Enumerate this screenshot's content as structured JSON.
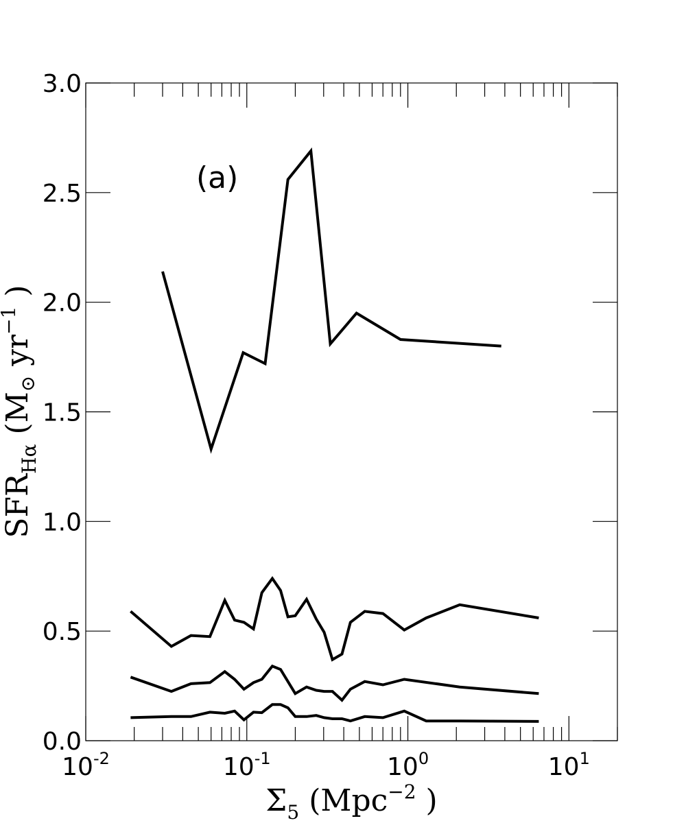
{
  "chart_data": {
    "type": "line",
    "title": "",
    "xlabel": "Σ5 (Mpc⁻² )",
    "ylabel": "SFR_Hα (M⊙ yr⁻¹ )",
    "xscale": "log",
    "xlim": [
      0.01,
      20
    ],
    "ylim": [
      0,
      3.0
    ],
    "grid": false,
    "legend": "none",
    "annotation": "(a)",
    "x_tick_labels": [
      {
        "value": 0.01,
        "base": "10",
        "exp": "-2"
      },
      {
        "value": 0.1,
        "base": "10",
        "exp": "-1"
      },
      {
        "value": 1,
        "base": "10",
        "exp": "0"
      },
      {
        "value": 10,
        "base": "10",
        "exp": "1"
      }
    ],
    "y_tick_labels": [
      "0.0",
      "0.5",
      "1.0",
      "1.5",
      "2.0",
      "2.5",
      "3.0"
    ],
    "y_ticks": [
      0,
      0.5,
      1.0,
      1.5,
      2.0,
      2.5,
      3.0
    ],
    "series": [
      {
        "x": [
          0.03,
          0.06,
          0.095,
          0.13,
          0.18,
          0.25,
          0.33,
          0.48,
          0.9,
          3.8
        ],
        "y": [
          2.14,
          1.33,
          1.77,
          1.72,
          2.56,
          2.69,
          1.81,
          1.95,
          1.83,
          1.8
        ]
      },
      {
        "x": [
          0.019,
          0.034,
          0.045,
          0.059,
          0.073,
          0.084,
          0.096,
          0.11,
          0.124,
          0.144,
          0.162,
          0.18,
          0.2,
          0.235,
          0.27,
          0.302,
          0.34,
          0.39,
          0.44,
          0.54,
          0.7,
          0.95,
          1.3,
          2.1,
          6.5
        ],
        "y": [
          0.59,
          0.43,
          0.48,
          0.475,
          0.64,
          0.55,
          0.54,
          0.51,
          0.675,
          0.74,
          0.685,
          0.565,
          0.57,
          0.645,
          0.555,
          0.495,
          0.37,
          0.395,
          0.54,
          0.59,
          0.58,
          0.505,
          0.56,
          0.62,
          0.56
        ]
      },
      {
        "x": [
          0.019,
          0.034,
          0.045,
          0.059,
          0.073,
          0.084,
          0.096,
          0.11,
          0.124,
          0.144,
          0.162,
          0.2,
          0.235,
          0.27,
          0.302,
          0.34,
          0.39,
          0.44,
          0.54,
          0.7,
          0.95,
          2.1,
          6.5
        ],
        "y": [
          0.29,
          0.225,
          0.26,
          0.265,
          0.315,
          0.28,
          0.235,
          0.265,
          0.28,
          0.34,
          0.325,
          0.215,
          0.245,
          0.23,
          0.225,
          0.225,
          0.185,
          0.235,
          0.27,
          0.255,
          0.28,
          0.245,
          0.215
        ]
      },
      {
        "x": [
          0.019,
          0.034,
          0.045,
          0.059,
          0.073,
          0.084,
          0.096,
          0.11,
          0.124,
          0.144,
          0.162,
          0.18,
          0.2,
          0.235,
          0.27,
          0.302,
          0.34,
          0.39,
          0.44,
          0.54,
          0.7,
          0.95,
          1.3,
          2.1,
          6.5
        ],
        "y": [
          0.105,
          0.11,
          0.11,
          0.13,
          0.125,
          0.135,
          0.095,
          0.13,
          0.128,
          0.165,
          0.165,
          0.15,
          0.11,
          0.11,
          0.115,
          0.105,
          0.1,
          0.1,
          0.09,
          0.11,
          0.105,
          0.135,
          0.09,
          0.09,
          0.088
        ]
      }
    ]
  }
}
